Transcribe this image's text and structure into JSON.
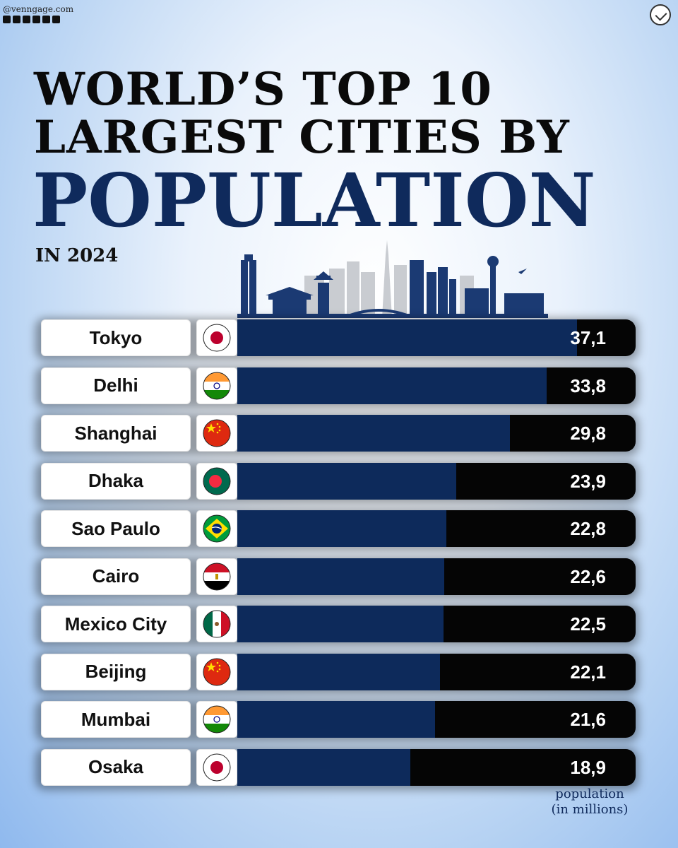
{
  "brand": {
    "handle": "@venngage.com"
  },
  "title": {
    "line1": "WORLD’S TOP 10",
    "line2": "LARGEST CITIES BY",
    "line3": "POPULATION",
    "subtitle": "IN 2024"
  },
  "unit_label": {
    "line1": "population",
    "line2": "(in millions)"
  },
  "colors": {
    "bar_fill": "#0d2a5b",
    "bar_track": "#050505",
    "title_accent": "#0f2a5c"
  },
  "chart_data": {
    "type": "bar",
    "orientation": "horizontal",
    "categories": [
      "Tokyo",
      "Delhi",
      "Shanghai",
      "Dhaka",
      "Sao Paulo",
      "Cairo",
      "Mexico City",
      "Beijing",
      "Mumbai",
      "Osaka"
    ],
    "values": [
      37.1,
      33.8,
      29.8,
      23.9,
      22.8,
      22.6,
      22.5,
      22.1,
      21.6,
      18.9
    ],
    "value_labels": [
      "37,1",
      "33,8",
      "29,8",
      "23,9",
      "22,8",
      "22,6",
      "22,5",
      "22,1",
      "21,6",
      "18,9"
    ],
    "flags": [
      "japan",
      "india",
      "china",
      "bangladesh",
      "brazil",
      "egypt",
      "mexico",
      "china",
      "india",
      "japan"
    ],
    "xlim": [
      0,
      43.5
    ]
  }
}
